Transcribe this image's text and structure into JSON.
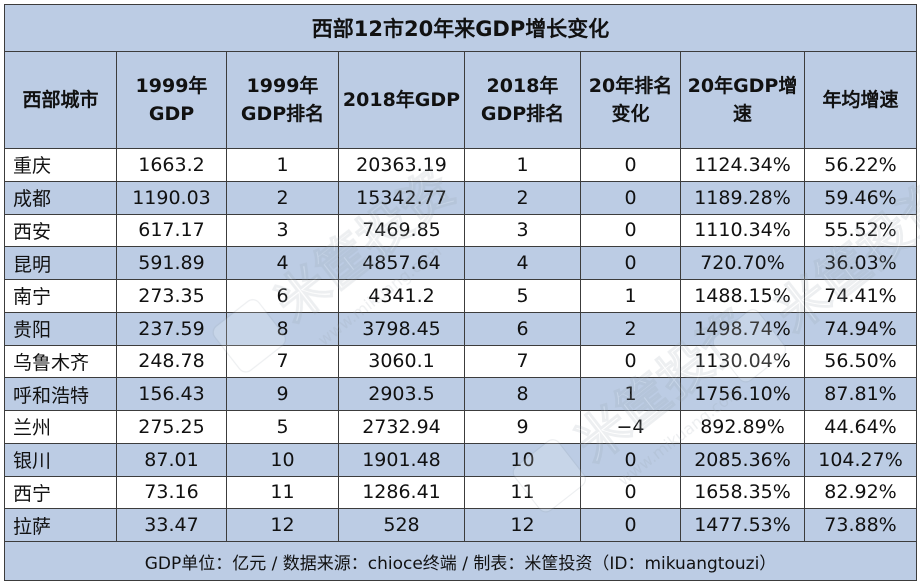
{
  "title": "西部12市20年来GDP增长变化",
  "headers": [
    "西部城市",
    "1999年GDP",
    "1999年GDP排名",
    "2018年GDP",
    "2018年GDP排名",
    "20年排名变化",
    "20年GDP增速",
    "年均增速"
  ],
  "rows": [
    [
      "重庆",
      "1663.2",
      "1",
      "20363.19",
      "1",
      "0",
      "1124.34%",
      "56.22%"
    ],
    [
      "成都",
      "1190.03",
      "2",
      "15342.77",
      "2",
      "0",
      "1189.28%",
      "59.46%"
    ],
    [
      "西安",
      "617.17",
      "3",
      "7469.85",
      "3",
      "0",
      "1110.34%",
      "55.52%"
    ],
    [
      "昆明",
      "591.89",
      "4",
      "4857.64",
      "4",
      "0",
      "720.70%",
      "36.03%"
    ],
    [
      "南宁",
      "273.35",
      "6",
      "4341.2",
      "5",
      "1",
      "1488.15%",
      "74.41%"
    ],
    [
      "贵阳",
      "237.59",
      "8",
      "3798.45",
      "6",
      "2",
      "1498.74%",
      "74.94%"
    ],
    [
      "乌鲁木齐",
      "248.78",
      "7",
      "3060.1",
      "7",
      "0",
      "1130.04%",
      "56.50%"
    ],
    [
      "呼和浩特",
      "156.43",
      "9",
      "2903.5",
      "8",
      "1",
      "1756.10%",
      "87.81%"
    ],
    [
      "兰州",
      "275.25",
      "5",
      "2732.94",
      "9",
      "−4",
      "892.89%",
      "44.64%"
    ],
    [
      "银川",
      "87.01",
      "10",
      "1901.48",
      "10",
      "0",
      "2085.36%",
      "104.27%"
    ],
    [
      "西宁",
      "73.16",
      "11",
      "1286.41",
      "11",
      "0",
      "1658.35%",
      "82.92%"
    ],
    [
      "拉萨",
      "33.47",
      "12",
      "528",
      "12",
      "0",
      "1477.53%",
      "73.88%"
    ]
  ],
  "footer": "GDP单位：亿元 / 数据来源：chioce终端 / 制表：米筐投资（ID：mikuangtouzi）",
  "watermark": "米筐投资",
  "watermark_url": "www.mikuang.com",
  "colors": {
    "header_bg": "#bccce4",
    "stripe_bg": "#bccce4",
    "border": "#3c3c3c"
  }
}
